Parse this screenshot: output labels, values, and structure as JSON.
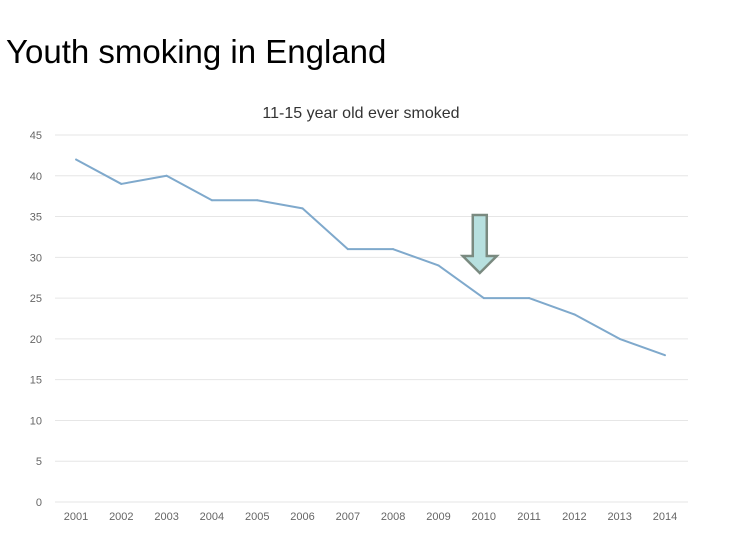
{
  "slide": {
    "title": "Youth smoking in England"
  },
  "chart_data": {
    "type": "line",
    "title": "11-15 year old ever smoked",
    "xlabel": "",
    "ylabel": "",
    "categories": [
      "2001",
      "2002",
      "2003",
      "2004",
      "2005",
      "2006",
      "2007",
      "2008",
      "2009",
      "2010",
      "2011",
      "2012",
      "2013",
      "2014"
    ],
    "series": [
      {
        "values": [
          42,
          39,
          40,
          37,
          37,
          36,
          31,
          31,
          29,
          25,
          25,
          23,
          20,
          18
        ]
      }
    ],
    "ylim": [
      0,
      45
    ],
    "yticks": [
      0,
      5,
      10,
      15,
      20,
      25,
      30,
      35,
      40,
      45
    ],
    "grid": true,
    "line_color": "#7fa9cc",
    "annotations": [
      {
        "type": "arrow",
        "points_to": "2010",
        "color": "#b7e0df",
        "stroke": "#7a8a80"
      }
    ]
  }
}
